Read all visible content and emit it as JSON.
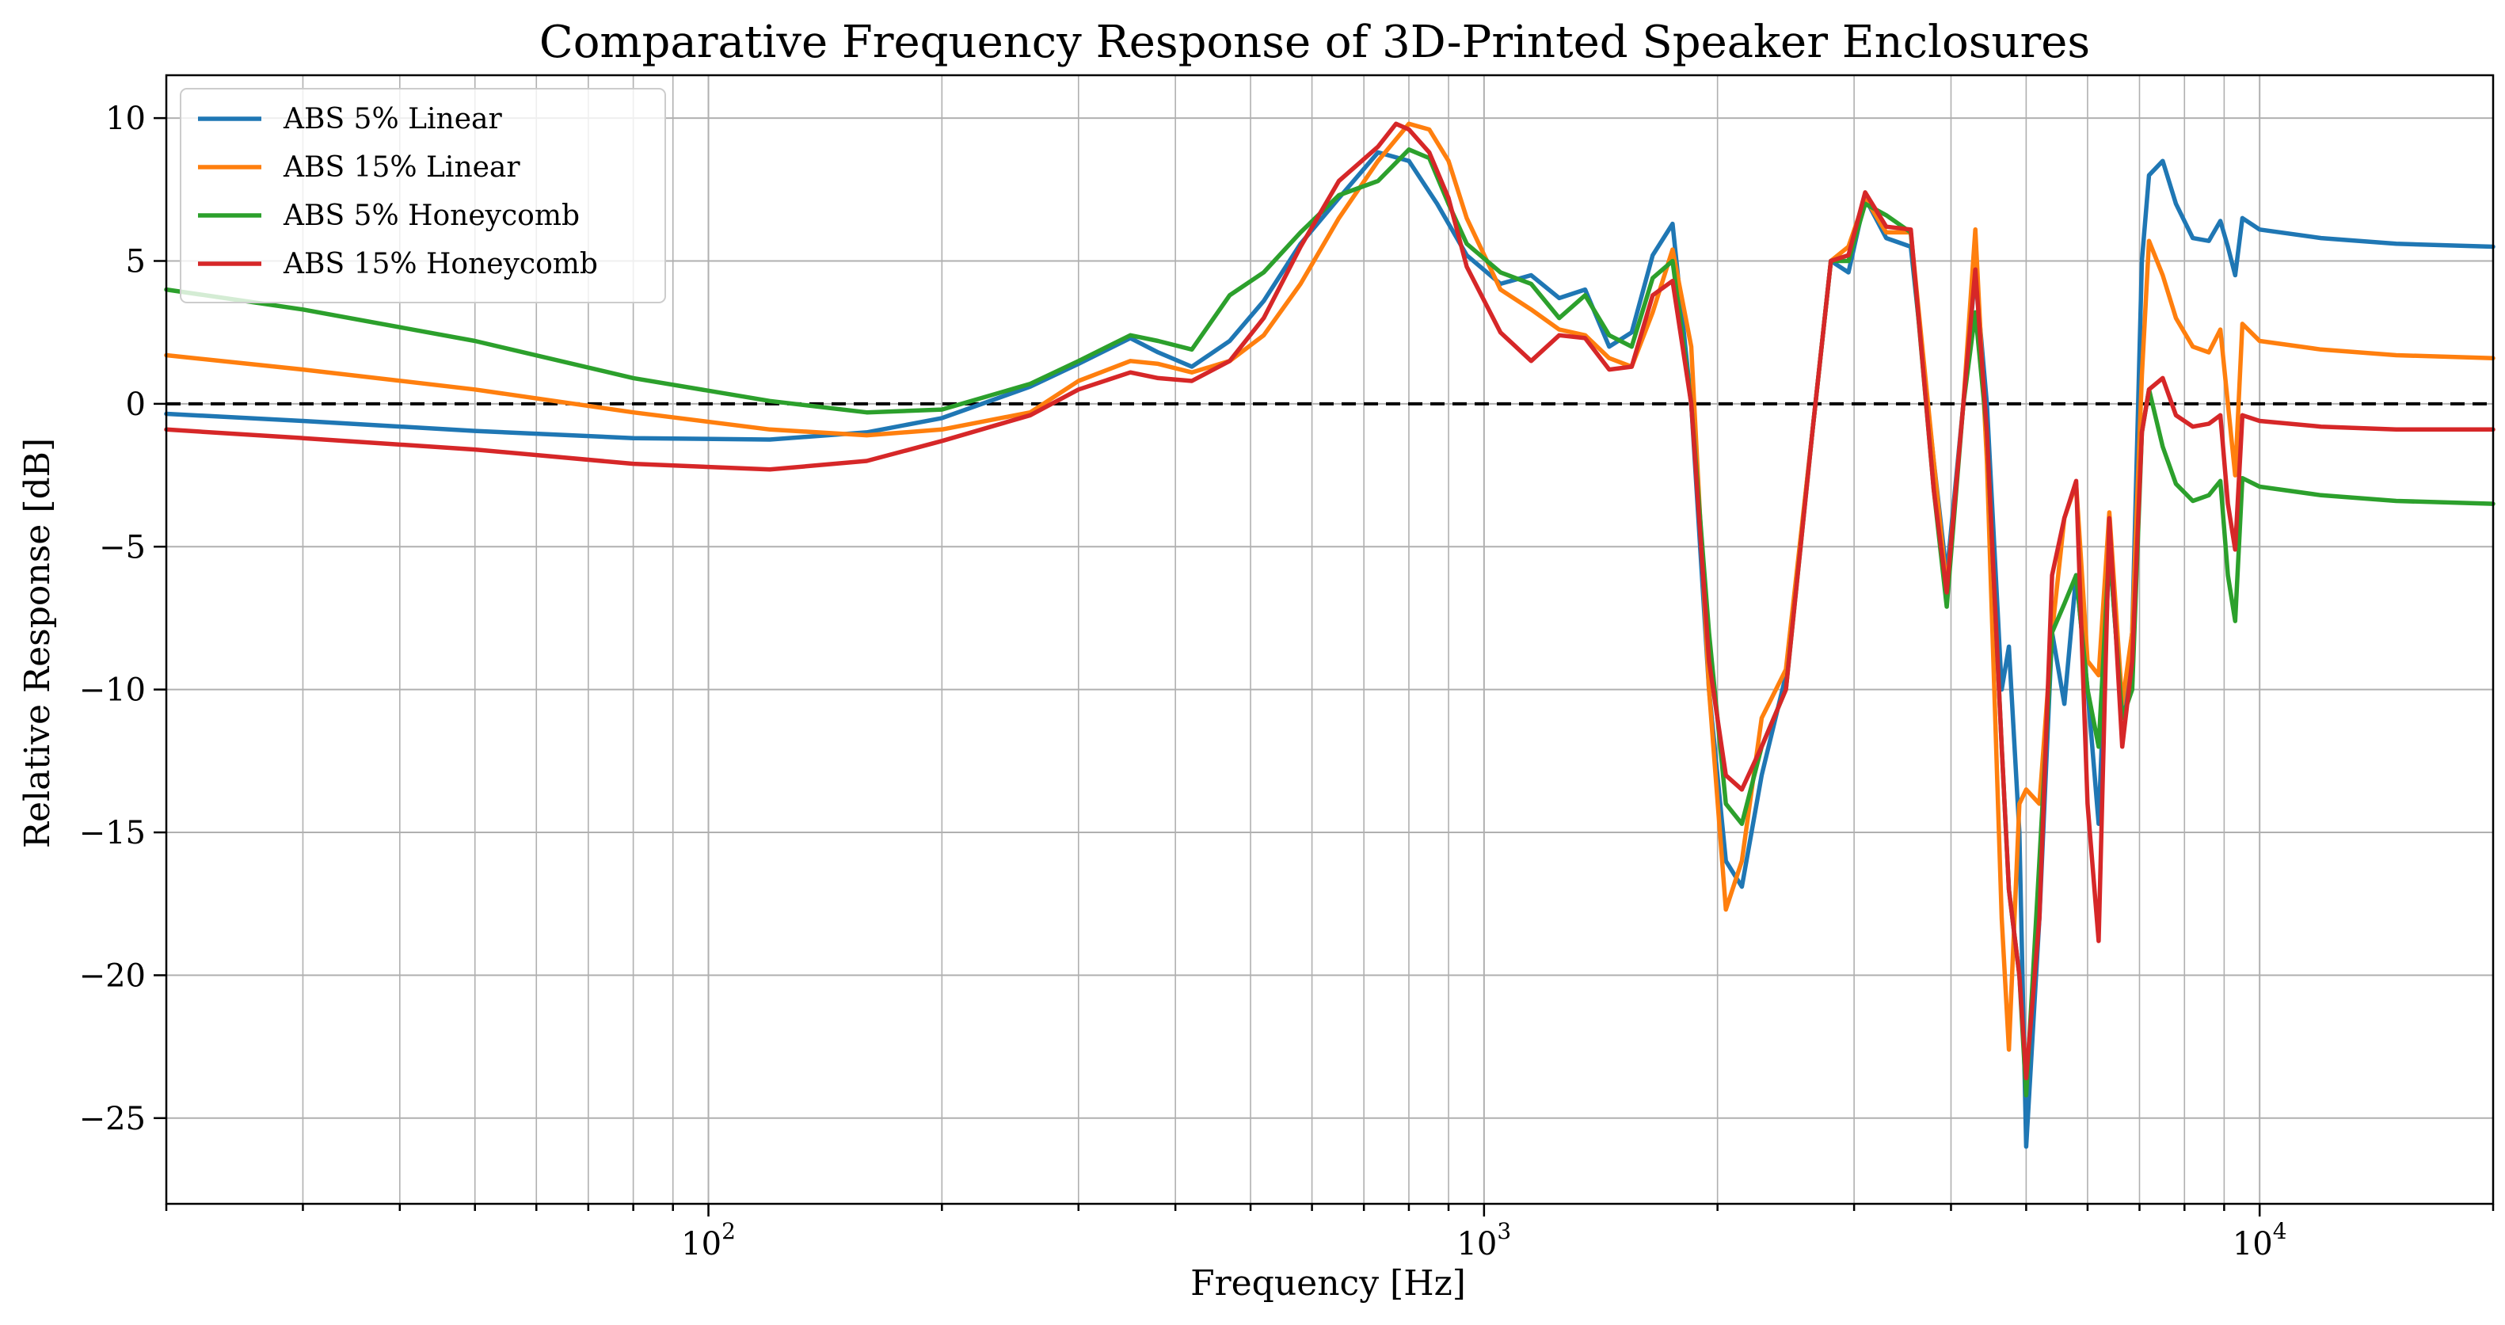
{
  "chart_data": {
    "type": "line",
    "title": "Comparative Frequency Response of 3D-Printed Speaker Enclosures",
    "xlabel": "Frequency [Hz]",
    "ylabel": "Relative Response [dB]",
    "xscale": "log",
    "xlim": [
      20,
      20000
    ],
    "ylim": [
      -28,
      11.5
    ],
    "grid": "on (major and minor)",
    "legend_position": "top-left",
    "reference_line": {
      "y": 0,
      "style": "dashed",
      "color": "#000000"
    },
    "x_major_ticks": [
      {
        "value": 100,
        "base": "10",
        "exp": "2"
      },
      {
        "value": 1000,
        "base": "10",
        "exp": "3"
      },
      {
        "value": 10000,
        "base": "10",
        "exp": "4"
      }
    ],
    "y_ticks": [
      {
        "value": 10,
        "label": "10"
      },
      {
        "value": 5,
        "label": "5"
      },
      {
        "value": 0,
        "label": "0"
      },
      {
        "value": -5,
        "label": "−5"
      },
      {
        "value": -10,
        "label": "−10"
      },
      {
        "value": -15,
        "label": "−15"
      },
      {
        "value": -20,
        "label": "−20"
      },
      {
        "value": -25,
        "label": "−25"
      }
    ],
    "series": [
      {
        "name": "ABS 5% Linear",
        "color": "#1f77b4",
        "points": [
          [
            20,
            -0.35
          ],
          [
            30,
            -0.6
          ],
          [
            50,
            -0.95
          ],
          [
            80,
            -1.2
          ],
          [
            120,
            -1.25
          ],
          [
            160,
            -1.0
          ],
          [
            200,
            -0.5
          ],
          [
            260,
            0.6
          ],
          [
            300,
            1.4
          ],
          [
            350,
            2.3
          ],
          [
            380,
            1.8
          ],
          [
            420,
            1.3
          ],
          [
            470,
            2.2
          ],
          [
            520,
            3.6
          ],
          [
            580,
            5.6
          ],
          [
            650,
            7.2
          ],
          [
            730,
            8.8
          ],
          [
            800,
            8.5
          ],
          [
            870,
            7.0
          ],
          [
            950,
            5.2
          ],
          [
            1050,
            4.2
          ],
          [
            1150,
            4.5
          ],
          [
            1250,
            3.7
          ],
          [
            1350,
            4.0
          ],
          [
            1450,
            2.0
          ],
          [
            1550,
            2.5
          ],
          [
            1650,
            5.2
          ],
          [
            1750,
            6.3
          ],
          [
            1850,
            0.0
          ],
          [
            1950,
            -10.0
          ],
          [
            2050,
            -16.0
          ],
          [
            2150,
            -16.9
          ],
          [
            2280,
            -13.0
          ],
          [
            2450,
            -9.5
          ],
          [
            2650,
            -1.0
          ],
          [
            2800,
            5.0
          ],
          [
            2950,
            4.6
          ],
          [
            3100,
            7.2
          ],
          [
            3300,
            5.8
          ],
          [
            3550,
            5.5
          ],
          [
            3800,
            -2.0
          ],
          [
            3950,
            -6.0
          ],
          [
            4150,
            0.0
          ],
          [
            4300,
            4.6
          ],
          [
            4450,
            0.0
          ],
          [
            4650,
            -10.0
          ],
          [
            4750,
            -8.5
          ],
          [
            4900,
            -15.0
          ],
          [
            5000,
            -26.0
          ],
          [
            5200,
            -18.0
          ],
          [
            5400,
            -8.0
          ],
          [
            5600,
            -10.5
          ],
          [
            5800,
            -6.0
          ],
          [
            6000,
            -10.0
          ],
          [
            6200,
            -14.7
          ],
          [
            6400,
            -5.0
          ],
          [
            6650,
            -11.0
          ],
          [
            6850,
            -8.0
          ],
          [
            7050,
            5.0
          ],
          [
            7200,
            8.0
          ],
          [
            7500,
            8.5
          ],
          [
            7800,
            7.0
          ],
          [
            8200,
            5.8
          ],
          [
            8600,
            5.7
          ],
          [
            8900,
            6.4
          ],
          [
            9100,
            5.5
          ],
          [
            9300,
            4.5
          ],
          [
            9500,
            6.5
          ],
          [
            10000,
            6.1
          ],
          [
            12000,
            5.8
          ],
          [
            15000,
            5.6
          ],
          [
            20000,
            5.5
          ]
        ]
      },
      {
        "name": "ABS 15% Linear",
        "color": "#ff7f0e",
        "points": [
          [
            20,
            1.7
          ],
          [
            30,
            1.2
          ],
          [
            50,
            0.5
          ],
          [
            80,
            -0.3
          ],
          [
            120,
            -0.9
          ],
          [
            160,
            -1.1
          ],
          [
            200,
            -0.9
          ],
          [
            260,
            -0.3
          ],
          [
            300,
            0.8
          ],
          [
            350,
            1.5
          ],
          [
            380,
            1.4
          ],
          [
            420,
            1.1
          ],
          [
            470,
            1.5
          ],
          [
            520,
            2.4
          ],
          [
            580,
            4.2
          ],
          [
            650,
            6.5
          ],
          [
            730,
            8.5
          ],
          [
            800,
            9.8
          ],
          [
            850,
            9.6
          ],
          [
            900,
            8.5
          ],
          [
            950,
            6.5
          ],
          [
            1050,
            4.0
          ],
          [
            1150,
            3.3
          ],
          [
            1250,
            2.6
          ],
          [
            1350,
            2.4
          ],
          [
            1450,
            1.6
          ],
          [
            1550,
            1.3
          ],
          [
            1650,
            3.2
          ],
          [
            1750,
            5.4
          ],
          [
            1850,
            2.0
          ],
          [
            1950,
            -10.0
          ],
          [
            2050,
            -17.7
          ],
          [
            2150,
            -16.0
          ],
          [
            2280,
            -11.0
          ],
          [
            2450,
            -9.3
          ],
          [
            2650,
            -1.0
          ],
          [
            2800,
            5.0
          ],
          [
            2950,
            5.5
          ],
          [
            3100,
            7.2
          ],
          [
            3300,
            6.0
          ],
          [
            3550,
            6.0
          ],
          [
            3800,
            -2.0
          ],
          [
            3950,
            -6.5
          ],
          [
            4150,
            0.0
          ],
          [
            4300,
            6.1
          ],
          [
            4450,
            -2.0
          ],
          [
            4650,
            -18.0
          ],
          [
            4750,
            -22.6
          ],
          [
            4900,
            -14.0
          ],
          [
            5000,
            -13.5
          ],
          [
            5200,
            -14.0
          ],
          [
            5400,
            -8.0
          ],
          [
            5600,
            -4.0
          ],
          [
            5800,
            -2.8
          ],
          [
            6000,
            -9.0
          ],
          [
            6200,
            -9.5
          ],
          [
            6400,
            -3.8
          ],
          [
            6650,
            -10.5
          ],
          [
            6850,
            -8.0
          ],
          [
            7050,
            1.0
          ],
          [
            7200,
            5.7
          ],
          [
            7500,
            4.5
          ],
          [
            7800,
            3.0
          ],
          [
            8200,
            2.0
          ],
          [
            8600,
            1.8
          ],
          [
            8900,
            2.6
          ],
          [
            9100,
            0.0
          ],
          [
            9300,
            -2.5
          ],
          [
            9500,
            2.8
          ],
          [
            10000,
            2.2
          ],
          [
            12000,
            1.9
          ],
          [
            15000,
            1.7
          ],
          [
            20000,
            1.6
          ]
        ]
      },
      {
        "name": "ABS 5% Honeycomb",
        "color": "#2ca02c",
        "points": [
          [
            20,
            4.0
          ],
          [
            30,
            3.3
          ],
          [
            50,
            2.2
          ],
          [
            80,
            0.9
          ],
          [
            120,
            0.1
          ],
          [
            160,
            -0.3
          ],
          [
            200,
            -0.2
          ],
          [
            260,
            0.7
          ],
          [
            300,
            1.5
          ],
          [
            350,
            2.4
          ],
          [
            380,
            2.2
          ],
          [
            420,
            1.9
          ],
          [
            470,
            3.8
          ],
          [
            520,
            4.6
          ],
          [
            580,
            6.0
          ],
          [
            650,
            7.3
          ],
          [
            730,
            7.8
          ],
          [
            800,
            8.9
          ],
          [
            850,
            8.6
          ],
          [
            900,
            7.0
          ],
          [
            950,
            5.6
          ],
          [
            1050,
            4.6
          ],
          [
            1150,
            4.2
          ],
          [
            1250,
            3.0
          ],
          [
            1350,
            3.8
          ],
          [
            1450,
            2.4
          ],
          [
            1550,
            2.0
          ],
          [
            1650,
            4.4
          ],
          [
            1750,
            5.0
          ],
          [
            1850,
            0.0
          ],
          [
            1950,
            -8.0
          ],
          [
            2050,
            -14.0
          ],
          [
            2150,
            -14.7
          ],
          [
            2280,
            -12.0
          ],
          [
            2450,
            -10.0
          ],
          [
            2650,
            -1.0
          ],
          [
            2800,
            5.0
          ],
          [
            2950,
            5.0
          ],
          [
            3100,
            7.0
          ],
          [
            3300,
            6.6
          ],
          [
            3550,
            6.0
          ],
          [
            3800,
            -3.0
          ],
          [
            3950,
            -7.1
          ],
          [
            4150,
            0.0
          ],
          [
            4300,
            3.2
          ],
          [
            4450,
            -1.0
          ],
          [
            4650,
            -12.0
          ],
          [
            4750,
            -17.0
          ],
          [
            4900,
            -20.0
          ],
          [
            5000,
            -24.2
          ],
          [
            5200,
            -16.0
          ],
          [
            5400,
            -8.0
          ],
          [
            5600,
            -7.0
          ],
          [
            5800,
            -6.0
          ],
          [
            6000,
            -10.0
          ],
          [
            6200,
            -12.0
          ],
          [
            6400,
            -5.0
          ],
          [
            6650,
            -11.0
          ],
          [
            6850,
            -10.0
          ],
          [
            7050,
            -1.0
          ],
          [
            7200,
            0.5
          ],
          [
            7500,
            -1.5
          ],
          [
            7800,
            -2.8
          ],
          [
            8200,
            -3.4
          ],
          [
            8600,
            -3.2
          ],
          [
            8900,
            -2.7
          ],
          [
            9100,
            -6.0
          ],
          [
            9300,
            -7.6
          ],
          [
            9500,
            -2.6
          ],
          [
            10000,
            -2.9
          ],
          [
            12000,
            -3.2
          ],
          [
            15000,
            -3.4
          ],
          [
            20000,
            -3.5
          ]
        ]
      },
      {
        "name": "ABS 15% Honeycomb",
        "color": "#d62728",
        "points": [
          [
            20,
            -0.9
          ],
          [
            30,
            -1.2
          ],
          [
            50,
            -1.6
          ],
          [
            80,
            -2.1
          ],
          [
            120,
            -2.3
          ],
          [
            160,
            -2.0
          ],
          [
            200,
            -1.3
          ],
          [
            260,
            -0.4
          ],
          [
            300,
            0.5
          ],
          [
            350,
            1.1
          ],
          [
            380,
            0.9
          ],
          [
            420,
            0.8
          ],
          [
            470,
            1.5
          ],
          [
            520,
            3.0
          ],
          [
            580,
            5.5
          ],
          [
            650,
            7.8
          ],
          [
            730,
            9.0
          ],
          [
            770,
            9.8
          ],
          [
            800,
            9.6
          ],
          [
            850,
            8.8
          ],
          [
            900,
            7.2
          ],
          [
            950,
            4.8
          ],
          [
            1050,
            2.5
          ],
          [
            1150,
            1.5
          ],
          [
            1250,
            2.4
          ],
          [
            1350,
            2.3
          ],
          [
            1450,
            1.2
          ],
          [
            1550,
            1.3
          ],
          [
            1650,
            3.8
          ],
          [
            1750,
            4.3
          ],
          [
            1850,
            0.0
          ],
          [
            1950,
            -9.0
          ],
          [
            2050,
            -13.0
          ],
          [
            2150,
            -13.5
          ],
          [
            2280,
            -12.0
          ],
          [
            2450,
            -10.0
          ],
          [
            2650,
            -1.0
          ],
          [
            2800,
            5.0
          ],
          [
            2950,
            5.2
          ],
          [
            3100,
            7.4
          ],
          [
            3300,
            6.2
          ],
          [
            3550,
            6.1
          ],
          [
            3800,
            -3.0
          ],
          [
            3950,
            -6.6
          ],
          [
            4150,
            0.0
          ],
          [
            4300,
            4.7
          ],
          [
            4450,
            -1.0
          ],
          [
            4650,
            -12.0
          ],
          [
            4750,
            -17.0
          ],
          [
            4900,
            -20.0
          ],
          [
            5000,
            -23.6
          ],
          [
            5200,
            -18.0
          ],
          [
            5400,
            -6.0
          ],
          [
            5600,
            -4.0
          ],
          [
            5800,
            -2.7
          ],
          [
            6000,
            -14.0
          ],
          [
            6200,
            -18.8
          ],
          [
            6400,
            -4.0
          ],
          [
            6650,
            -12.0
          ],
          [
            6850,
            -9.0
          ],
          [
            7050,
            -1.0
          ],
          [
            7200,
            0.5
          ],
          [
            7500,
            0.9
          ],
          [
            7800,
            -0.4
          ],
          [
            8200,
            -0.8
          ],
          [
            8600,
            -0.7
          ],
          [
            8900,
            -0.4
          ],
          [
            9100,
            -3.5
          ],
          [
            9300,
            -5.1
          ],
          [
            9500,
            -0.4
          ],
          [
            10000,
            -0.6
          ],
          [
            12000,
            -0.8
          ],
          [
            15000,
            -0.9
          ],
          [
            20000,
            -0.9
          ]
        ]
      }
    ]
  }
}
